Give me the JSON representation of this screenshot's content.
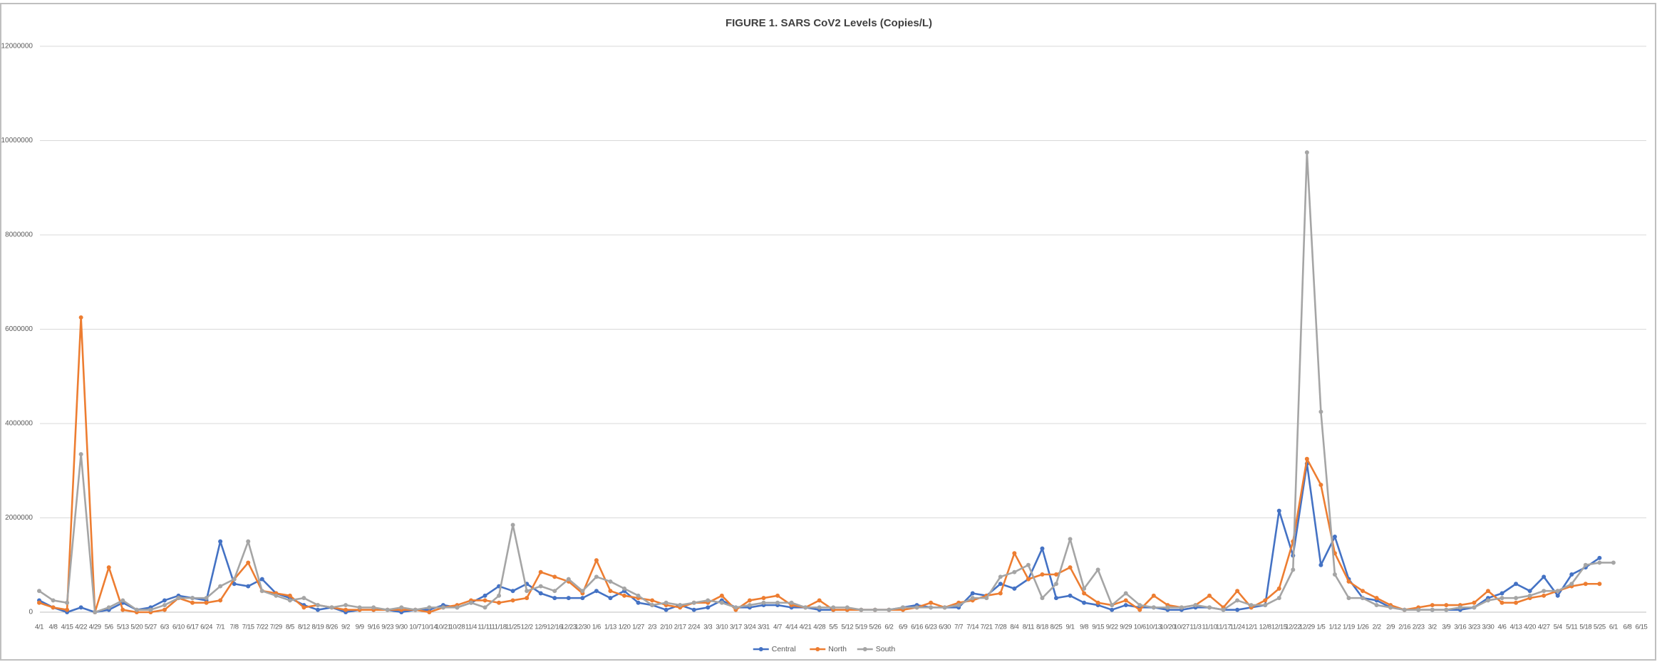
{
  "chart_data": {
    "type": "line",
    "title": "FIGURE 1.  SARS CoV2 Levels (Copies/L)",
    "categories": [
      "4/1",
      "4/8",
      "4/15",
      "4/22",
      "4/29",
      "5/6",
      "5/13",
      "5/20",
      "5/27",
      "6/3",
      "6/10",
      "6/17",
      "6/24",
      "7/1",
      "7/8",
      "7/15",
      "7/22",
      "7/29",
      "8/5",
      "8/12",
      "8/19",
      "8/26",
      "9/2",
      "9/9",
      "9/16",
      "9/23",
      "9/30",
      "10/7",
      "10/14",
      "10/21",
      "10/28",
      "11/4",
      "11/11",
      "11/18",
      "11/25",
      "12/2",
      "12/9",
      "12/16",
      "12/23",
      "12/30",
      "1/6",
      "1/13",
      "1/20",
      "1/27",
      "2/3",
      "2/10",
      "2/17",
      "2/24",
      "3/3",
      "3/10",
      "3/17",
      "3/24",
      "3/31",
      "4/7",
      "4/14",
      "4/21",
      "4/28",
      "5/5",
      "5/12",
      "5/19",
      "5/26",
      "6/2",
      "6/9",
      "6/16",
      "6/23",
      "6/30",
      "7/7",
      "7/14",
      "7/21",
      "7/28",
      "8/4",
      "8/11",
      "8/18",
      "8/25",
      "9/1",
      "9/8",
      "9/15",
      "9/22",
      "9/29",
      "10/6",
      "10/13",
      "10/20",
      "10/27",
      "11/3",
      "11/10",
      "11/17",
      "11/24",
      "12/1",
      "12/8",
      "12/15",
      "12/22",
      "12/29",
      "1/5",
      "1/12",
      "1/19",
      "1/26",
      "2/2",
      "2/9",
      "2/16",
      "2/23",
      "3/2",
      "3/9",
      "3/16",
      "3/23",
      "3/30",
      "4/6",
      "4/13",
      "4/20",
      "4/27",
      "5/4",
      "5/11",
      "5/18",
      "5/25",
      "6/1",
      "6/8",
      "6/15"
    ],
    "series": [
      {
        "name": "Central",
        "color": "#4472c4",
        "values": [
          250000,
          100000,
          0,
          100000,
          0,
          50000,
          200000,
          50000,
          100000,
          250000,
          350000,
          300000,
          250000,
          1500000,
          600000,
          550000,
          700000,
          400000,
          300000,
          150000,
          50000,
          100000,
          0,
          50000,
          50000,
          50000,
          0,
          50000,
          50000,
          150000,
          100000,
          200000,
          350000,
          550000,
          450000,
          600000,
          400000,
          300000,
          300000,
          300000,
          450000,
          300000,
          450000,
          200000,
          150000,
          50000,
          150000,
          50000,
          100000,
          250000,
          100000,
          100000,
          150000,
          150000,
          100000,
          100000,
          50000,
          50000,
          50000,
          50000,
          50000,
          50000,
          100000,
          150000,
          100000,
          100000,
          100000,
          400000,
          350000,
          600000,
          500000,
          700000,
          1350000,
          300000,
          350000,
          200000,
          150000,
          50000,
          150000,
          100000,
          100000,
          50000,
          50000,
          100000,
          100000,
          50000,
          50000,
          100000,
          150000,
          2150000,
          1200000,
          3150000,
          1000000,
          1600000,
          700000,
          300000,
          250000,
          100000,
          50000,
          50000,
          50000,
          50000,
          50000,
          100000,
          300000,
          400000,
          600000,
          450000,
          750000,
          350000,
          800000,
          950000,
          1150000,
          null,
          null,
          null
        ]
      },
      {
        "name": "North",
        "color": "#ed7d31",
        "values": [
          200000,
          100000,
          50000,
          6250000,
          0,
          950000,
          50000,
          0,
          0,
          50000,
          300000,
          200000,
          200000,
          250000,
          700000,
          1050000,
          450000,
          400000,
          350000,
          100000,
          150000,
          100000,
          50000,
          50000,
          50000,
          50000,
          50000,
          50000,
          0,
          100000,
          150000,
          250000,
          250000,
          200000,
          250000,
          300000,
          850000,
          750000,
          650000,
          400000,
          1100000,
          450000,
          350000,
          300000,
          250000,
          150000,
          100000,
          200000,
          200000,
          350000,
          50000,
          250000,
          300000,
          350000,
          150000,
          100000,
          250000,
          50000,
          50000,
          50000,
          50000,
          50000,
          50000,
          100000,
          200000,
          100000,
          200000,
          250000,
          350000,
          400000,
          1250000,
          700000,
          800000,
          800000,
          950000,
          400000,
          200000,
          150000,
          250000,
          50000,
          350000,
          150000,
          100000,
          150000,
          350000,
          100000,
          450000,
          100000,
          250000,
          500000,
          1500000,
          3250000,
          2700000,
          1250000,
          650000,
          450000,
          300000,
          150000,
          50000,
          100000,
          150000,
          150000,
          150000,
          200000,
          450000,
          200000,
          200000,
          300000,
          350000,
          450000,
          550000,
          600000,
          600000,
          null,
          null,
          null
        ]
      },
      {
        "name": "South",
        "color": "#a5a5a5",
        "values": [
          450000,
          250000,
          200000,
          3350000,
          0,
          100000,
          250000,
          50000,
          50000,
          150000,
          300000,
          300000,
          300000,
          550000,
          700000,
          1500000,
          450000,
          350000,
          250000,
          300000,
          150000,
          100000,
          150000,
          100000,
          100000,
          50000,
          100000,
          50000,
          100000,
          100000,
          100000,
          200000,
          100000,
          350000,
          1850000,
          450000,
          550000,
          450000,
          700000,
          450000,
          750000,
          650000,
          500000,
          350000,
          150000,
          200000,
          150000,
          200000,
          250000,
          200000,
          100000,
          150000,
          200000,
          200000,
          200000,
          100000,
          100000,
          100000,
          100000,
          50000,
          50000,
          50000,
          100000,
          100000,
          100000,
          100000,
          150000,
          300000,
          300000,
          750000,
          850000,
          1000000,
          300000,
          600000,
          1550000,
          500000,
          900000,
          150000,
          400000,
          150000,
          100000,
          100000,
          100000,
          150000,
          100000,
          50000,
          250000,
          150000,
          150000,
          300000,
          900000,
          9750000,
          4250000,
          800000,
          300000,
          300000,
          150000,
          100000,
          50000,
          50000,
          50000,
          50000,
          100000,
          100000,
          250000,
          300000,
          300000,
          350000,
          450000,
          450000,
          600000,
          1000000,
          1050000,
          1050000,
          null,
          null
        ]
      }
    ],
    "ylim": [
      0,
      12000000
    ],
    "yticks": [
      0,
      2000000,
      4000000,
      6000000,
      8000000,
      10000000,
      12000000
    ],
    "grid": true,
    "legend": "bottom"
  }
}
